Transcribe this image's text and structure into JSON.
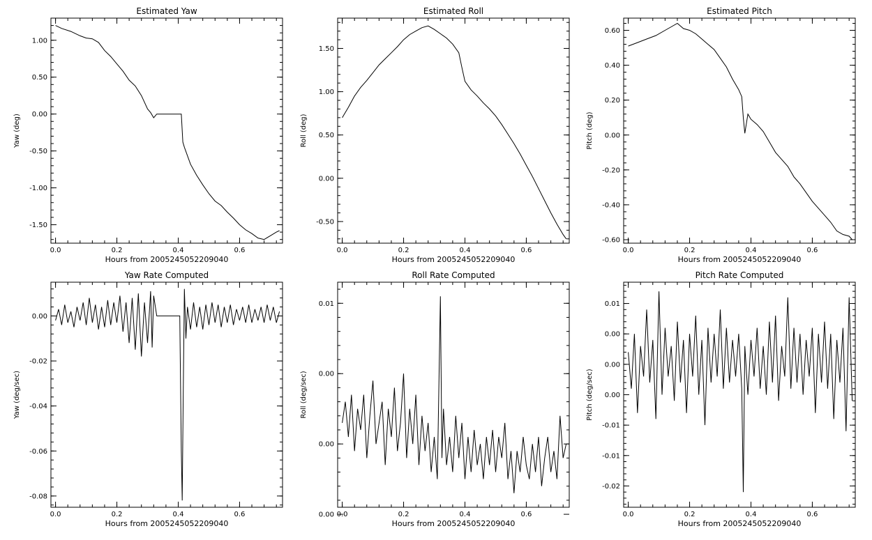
{
  "chart_data": [
    {
      "type": "line",
      "title": "Estimated Yaw",
      "xlabel": "Hours from 2005245052209040",
      "ylabel": "Yaw (deg)",
      "xlim": [
        -0.015,
        0.74
      ],
      "ylim": [
        -1.75,
        1.3
      ],
      "xticks": [
        0.0,
        0.2,
        0.4,
        0.6
      ],
      "xtick_labels": [
        "0.0",
        "0.2",
        "0.4",
        "0.6"
      ],
      "yticks": [
        1.0,
        0.5,
        0.0,
        -0.5,
        -1.0,
        -1.5
      ],
      "ytick_labels": [
        "1.00",
        "0.50",
        "0.00",
        "-0.50",
        "-1.00",
        "-1.50"
      ],
      "series": [
        {
          "x": [
            0.0,
            0.02,
            0.05,
            0.08,
            0.1,
            0.12,
            0.14,
            0.16,
            0.18,
            0.2,
            0.22,
            0.24,
            0.26,
            0.28,
            0.3,
            0.31,
            0.32,
            0.33,
            0.37,
            0.41,
            0.415,
            0.42,
            0.44,
            0.46,
            0.48,
            0.5,
            0.52,
            0.54,
            0.56,
            0.58,
            0.6,
            0.62,
            0.64,
            0.66,
            0.68,
            0.7,
            0.72,
            0.73
          ],
          "y": [
            1.2,
            1.16,
            1.12,
            1.06,
            1.03,
            1.02,
            0.97,
            0.86,
            0.78,
            0.68,
            0.58,
            0.46,
            0.38,
            0.25,
            0.07,
            0.02,
            -0.05,
            0.0,
            0.0,
            0.0,
            -0.38,
            -0.45,
            -0.68,
            -0.83,
            -0.96,
            -1.08,
            -1.18,
            -1.24,
            -1.33,
            -1.41,
            -1.5,
            -1.57,
            -1.62,
            -1.68,
            -1.7,
            -1.65,
            -1.6,
            -1.58
          ]
        }
      ]
    },
    {
      "type": "line",
      "title": "Estimated Roll",
      "xlabel": "Hours from 2005245052209040",
      "ylabel": "Roll (deg)",
      "xlim": [
        -0.015,
        0.74
      ],
      "ylim": [
        -0.75,
        1.85
      ],
      "xticks": [
        0.0,
        0.2,
        0.4,
        0.6
      ],
      "xtick_labels": [
        "0.0",
        "0.2",
        "0.4",
        "0.6"
      ],
      "yticks": [
        1.5,
        1.0,
        0.5,
        0.0,
        -0.5
      ],
      "ytick_labels": [
        "1.50",
        "1.00",
        "0.50",
        "0.00",
        "-0.50"
      ],
      "series": [
        {
          "x": [
            0.0,
            0.02,
            0.04,
            0.06,
            0.08,
            0.1,
            0.12,
            0.14,
            0.16,
            0.18,
            0.2,
            0.22,
            0.24,
            0.26,
            0.28,
            0.3,
            0.32,
            0.34,
            0.36,
            0.38,
            0.39,
            0.4,
            0.42,
            0.44,
            0.46,
            0.48,
            0.5,
            0.52,
            0.54,
            0.56,
            0.58,
            0.6,
            0.62,
            0.64,
            0.66,
            0.68,
            0.7,
            0.72,
            0.73
          ],
          "y": [
            0.7,
            0.82,
            0.95,
            1.05,
            1.13,
            1.22,
            1.31,
            1.38,
            1.45,
            1.52,
            1.6,
            1.66,
            1.7,
            1.74,
            1.76,
            1.72,
            1.67,
            1.62,
            1.55,
            1.45,
            1.28,
            1.12,
            1.02,
            0.95,
            0.87,
            0.8,
            0.72,
            0.62,
            0.51,
            0.4,
            0.28,
            0.15,
            0.02,
            -0.12,
            -0.26,
            -0.4,
            -0.53,
            -0.65,
            -0.7
          ]
        }
      ]
    },
    {
      "type": "line",
      "title": "Estimated Pitch",
      "xlabel": "Hours from 2005245052209040",
      "ylabel": "Pitch (deg)",
      "xlim": [
        -0.015,
        0.74
      ],
      "ylim": [
        -0.62,
        0.67
      ],
      "xticks": [
        0.0,
        0.2,
        0.4,
        0.6
      ],
      "xtick_labels": [
        "0.0",
        "0.2",
        "0.4",
        "0.6"
      ],
      "yticks": [
        0.6,
        0.4,
        0.2,
        0.0,
        -0.2,
        -0.4,
        -0.6
      ],
      "ytick_labels": [
        "0.60",
        "0.40",
        "0.20",
        "0.00",
        "-0.20",
        "-0.40",
        "-0.60"
      ],
      "series": [
        {
          "x": [
            0.0,
            0.03,
            0.06,
            0.09,
            0.12,
            0.14,
            0.16,
            0.18,
            0.2,
            0.22,
            0.24,
            0.26,
            0.28,
            0.3,
            0.32,
            0.34,
            0.36,
            0.37,
            0.375,
            0.38,
            0.39,
            0.4,
            0.42,
            0.44,
            0.46,
            0.48,
            0.5,
            0.52,
            0.54,
            0.56,
            0.58,
            0.6,
            0.62,
            0.64,
            0.66,
            0.68,
            0.7,
            0.72,
            0.73
          ],
          "y": [
            0.51,
            0.53,
            0.55,
            0.57,
            0.6,
            0.62,
            0.64,
            0.61,
            0.6,
            0.58,
            0.55,
            0.52,
            0.49,
            0.44,
            0.39,
            0.32,
            0.26,
            0.22,
            0.1,
            0.01,
            0.12,
            0.09,
            0.06,
            0.02,
            -0.04,
            -0.1,
            -0.14,
            -0.18,
            -0.24,
            -0.28,
            -0.33,
            -0.38,
            -0.42,
            -0.46,
            -0.5,
            -0.55,
            -0.57,
            -0.58,
            -0.6
          ]
        }
      ]
    },
    {
      "type": "line",
      "title": "Yaw Rate Computed",
      "xlabel": "Hours from 2005245052209040",
      "ylabel": "Yaw (deg/sec)",
      "xlim": [
        -0.015,
        0.74
      ],
      "ylim": [
        -0.085,
        0.015
      ],
      "xticks": [
        0.0,
        0.2,
        0.4,
        0.6
      ],
      "xtick_labels": [
        "0.0",
        "0.2",
        "0.4",
        "0.6"
      ],
      "yticks": [
        0.0,
        -0.02,
        -0.04,
        -0.06,
        -0.08
      ],
      "ytick_labels": [
        "0.00",
        "-0.02",
        "-0.04",
        "-0.06",
        "-0.08"
      ],
      "series": [
        {
          "x": [
            0.0,
            0.01,
            0.02,
            0.03,
            0.04,
            0.05,
            0.06,
            0.07,
            0.08,
            0.09,
            0.1,
            0.11,
            0.12,
            0.13,
            0.14,
            0.15,
            0.16,
            0.17,
            0.18,
            0.19,
            0.2,
            0.21,
            0.22,
            0.23,
            0.24,
            0.25,
            0.26,
            0.27,
            0.28,
            0.29,
            0.3,
            0.31,
            0.315,
            0.32,
            0.33,
            0.36,
            0.39,
            0.405,
            0.41,
            0.413,
            0.416,
            0.42,
            0.425,
            0.43,
            0.44,
            0.45,
            0.46,
            0.47,
            0.48,
            0.49,
            0.5,
            0.51,
            0.52,
            0.53,
            0.54,
            0.55,
            0.56,
            0.57,
            0.58,
            0.59,
            0.6,
            0.61,
            0.62,
            0.63,
            0.64,
            0.65,
            0.66,
            0.67,
            0.68,
            0.69,
            0.7,
            0.71,
            0.72,
            0.73
          ],
          "y": [
            -0.002,
            0.003,
            -0.004,
            0.005,
            -0.003,
            0.002,
            -0.005,
            0.004,
            -0.002,
            0.006,
            -0.004,
            0.008,
            -0.003,
            0.005,
            -0.006,
            0.004,
            -0.005,
            0.007,
            -0.004,
            0.006,
            -0.003,
            0.009,
            -0.007,
            0.006,
            -0.012,
            0.008,
            -0.015,
            0.01,
            -0.018,
            0.006,
            -0.012,
            0.011,
            -0.014,
            0.009,
            0.0,
            0.0,
            0.0,
            0.0,
            -0.06,
            -0.082,
            -0.04,
            0.012,
            -0.01,
            0.004,
            -0.006,
            0.006,
            -0.005,
            0.004,
            -0.006,
            0.005,
            -0.004,
            0.006,
            -0.003,
            0.005,
            -0.005,
            0.004,
            -0.003,
            0.005,
            -0.004,
            0.003,
            -0.002,
            0.004,
            -0.003,
            0.005,
            -0.003,
            0.003,
            -0.002,
            0.004,
            -0.003,
            0.005,
            -0.002,
            0.004,
            -0.003,
            0.002
          ]
        }
      ]
    },
    {
      "type": "line",
      "title": "Roll Rate Computed",
      "xlabel": "Hours from 2005245052209040",
      "ylabel": "Roll (deg/sec)",
      "xlim": [
        -0.015,
        0.74
      ],
      "ylim": [
        -0.0045,
        0.0115
      ],
      "xticks": [
        0.0,
        0.2,
        0.4,
        0.6
      ],
      "xtick_labels": [
        "0.0",
        "0.2",
        "0.4",
        "0.6"
      ],
      "yticks": [
        0.01,
        0.005,
        0.0,
        -0.005
      ],
      "ytick_labels": [
        "0.01",
        "0.00",
        "0.00",
        "0.00"
      ],
      "series": [
        {
          "x": [
            0.0,
            0.01,
            0.02,
            0.03,
            0.04,
            0.05,
            0.06,
            0.07,
            0.08,
            0.09,
            0.1,
            0.11,
            0.12,
            0.13,
            0.14,
            0.15,
            0.16,
            0.17,
            0.18,
            0.19,
            0.2,
            0.21,
            0.22,
            0.23,
            0.24,
            0.25,
            0.26,
            0.27,
            0.28,
            0.29,
            0.3,
            0.31,
            0.32,
            0.325,
            0.33,
            0.34,
            0.35,
            0.36,
            0.37,
            0.38,
            0.39,
            0.4,
            0.41,
            0.42,
            0.43,
            0.44,
            0.45,
            0.46,
            0.47,
            0.48,
            0.49,
            0.5,
            0.51,
            0.52,
            0.53,
            0.54,
            0.55,
            0.56,
            0.57,
            0.58,
            0.59,
            0.6,
            0.61,
            0.62,
            0.63,
            0.64,
            0.65,
            0.66,
            0.67,
            0.68,
            0.69,
            0.7,
            0.71,
            0.72,
            0.73
          ],
          "y": [
            0.0015,
            0.003,
            0.0005,
            0.0035,
            -0.0005,
            0.0025,
            0.001,
            0.0035,
            -0.001,
            0.002,
            0.0045,
            0.0,
            0.0015,
            0.003,
            -0.0015,
            0.0025,
            0.0005,
            0.004,
            -0.0005,
            0.0015,
            0.005,
            -0.001,
            0.0025,
            0.0,
            0.0035,
            -0.0015,
            0.002,
            -0.0005,
            0.0015,
            -0.002,
            0.0005,
            -0.0025,
            0.0105,
            -0.001,
            0.0025,
            -0.0015,
            0.0005,
            -0.002,
            0.002,
            -0.001,
            0.0015,
            -0.0025,
            0.0005,
            -0.002,
            0.001,
            -0.0015,
            0.0,
            -0.0025,
            0.0005,
            -0.0015,
            0.001,
            -0.002,
            0.0005,
            -0.001,
            0.0015,
            -0.0025,
            -0.0005,
            -0.0035,
            -0.0005,
            -0.002,
            0.0005,
            -0.0015,
            -0.0025,
            0.0,
            -0.002,
            0.0005,
            -0.003,
            -0.001,
            0.0005,
            -0.002,
            -0.0005,
            -0.0025,
            0.002,
            -0.001,
            0.0
          ]
        }
      ]
    },
    {
      "type": "line",
      "title": "Pitch Rate Computed",
      "xlabel": "Hours from 2005245052209040",
      "ylabel": "Pitch (deg/sec)",
      "xlim": [
        -0.015,
        0.74
      ],
      "ylim": [
        -0.0235,
        0.0135
      ],
      "xticks": [
        0.0,
        0.2,
        0.4,
        0.6
      ],
      "xtick_labels": [
        "0.0",
        "0.2",
        "0.4",
        "0.6"
      ],
      "yticks": [
        0.01,
        0.005,
        0.0,
        -0.005,
        -0.01,
        -0.015,
        -0.02
      ],
      "ytick_labels": [
        "0.01",
        "0.00",
        "0.00",
        "0.00",
        "-0.01",
        "-0.01",
        "-0.02"
      ],
      "series": [
        {
          "x": [
            0.0,
            0.01,
            0.02,
            0.03,
            0.04,
            0.05,
            0.06,
            0.07,
            0.08,
            0.09,
            0.1,
            0.11,
            0.12,
            0.13,
            0.14,
            0.15,
            0.16,
            0.17,
            0.18,
            0.19,
            0.2,
            0.21,
            0.22,
            0.23,
            0.24,
            0.25,
            0.26,
            0.27,
            0.28,
            0.29,
            0.3,
            0.31,
            0.32,
            0.33,
            0.34,
            0.35,
            0.36,
            0.37,
            0.375,
            0.38,
            0.39,
            0.4,
            0.41,
            0.42,
            0.43,
            0.44,
            0.45,
            0.46,
            0.47,
            0.48,
            0.49,
            0.5,
            0.51,
            0.52,
            0.53,
            0.54,
            0.55,
            0.56,
            0.57,
            0.58,
            0.59,
            0.6,
            0.61,
            0.62,
            0.63,
            0.64,
            0.65,
            0.66,
            0.67,
            0.68,
            0.69,
            0.7,
            0.71,
            0.72,
            0.73
          ],
          "y": [
            0.002,
            -0.004,
            0.005,
            -0.008,
            0.003,
            -0.002,
            0.009,
            -0.003,
            0.004,
            -0.009,
            0.012,
            -0.005,
            0.006,
            -0.002,
            0.003,
            -0.006,
            0.007,
            -0.003,
            0.004,
            -0.008,
            0.005,
            -0.002,
            0.008,
            -0.005,
            0.004,
            -0.01,
            0.006,
            -0.003,
            0.005,
            -0.002,
            0.009,
            -0.004,
            0.006,
            -0.003,
            0.004,
            -0.002,
            0.005,
            -0.004,
            -0.021,
            0.003,
            -0.005,
            0.004,
            -0.002,
            0.006,
            -0.004,
            0.003,
            -0.005,
            0.007,
            -0.003,
            0.008,
            -0.006,
            0.003,
            -0.002,
            0.011,
            -0.004,
            0.006,
            -0.003,
            0.005,
            -0.005,
            0.004,
            -0.002,
            0.006,
            -0.008,
            0.005,
            -0.003,
            0.007,
            -0.004,
            0.005,
            -0.009,
            0.004,
            -0.003,
            0.006,
            -0.011,
            0.011,
            -0.006
          ]
        }
      ]
    }
  ]
}
